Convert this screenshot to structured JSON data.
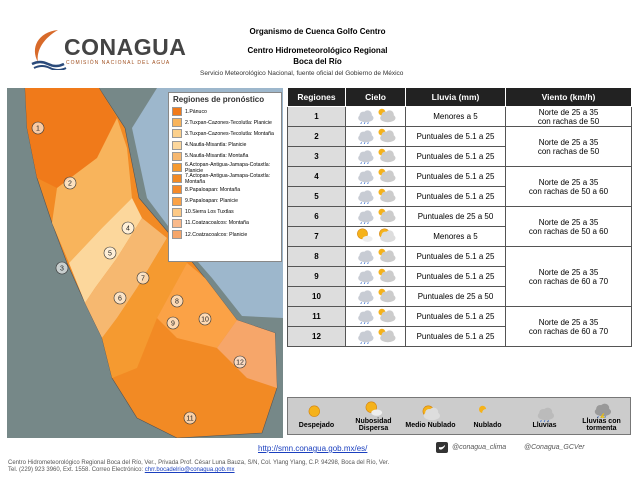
{
  "header": {
    "logo": "CONAGUA",
    "logo_sub": "COMISIÓN NACIONAL DEL AGUA",
    "title": "Organismo de Cuenca Golfo Centro",
    "subtitle": "Centro Hidrometeorológico Regional",
    "place": "Boca del Río",
    "service": "Servicio Meteorológico Nacional, fuente oficial del Gobierno de México"
  },
  "map": {
    "legend_title": "Regiones de pronóstico",
    "legend_items": [
      "1.Pánuco",
      "2.Tuxpan-Cazones-Tecolutla: Planicie",
      "3.Tuxpan-Cazones-Tecolutla: Montaña",
      "4.Nautla-Misantla: Planicie",
      "5.Nautla-Misantla: Montaña",
      "6.Actopan-Antigua-Jamapa-Cotaxtla: Planicie",
      "7.Actopan-Antigua-Jamapa-Cotaxtla: Montaña",
      "8.Papaloapan: Montaña",
      "9.Papaloapan: Planicie",
      "10.Sierra Los Tuxtlas",
      "11.Coatzacoalcos: Montaña",
      "12.Coatzacoalcos: Planicie"
    ],
    "legend_colors": [
      "#f07a1a",
      "#f8b45c",
      "#fbd08c",
      "#fcd79c",
      "#f6b870",
      "#f59a30",
      "#f28a24",
      "#f58a2a",
      "#fba246",
      "#fcc986",
      "#f9b98a",
      "#f6a66a"
    ],
    "labels": [
      "1",
      "2",
      "3",
      "4",
      "5",
      "6",
      "7",
      "8",
      "9",
      "10",
      "11",
      "12"
    ]
  },
  "table": {
    "headers": [
      "Regiones",
      "Cielo",
      "Lluvia (mm)",
      "Viento (km/h)"
    ],
    "regions": [
      "1",
      "2",
      "3",
      "4",
      "5",
      "6",
      "7",
      "8",
      "9",
      "10",
      "11",
      "12"
    ],
    "lluvia": [
      "Menores a 5",
      "Puntuales de 5.1 a 25",
      "Puntuales de 5.1 a 25",
      "Puntuales de 5.1 a 25",
      "Puntuales de 5.1 a 25",
      "Puntuales de 25 a 50",
      "Menores a 5",
      "Puntuales de 5.1 a 25",
      "Puntuales de 5.1 a 25",
      "Puntuales de 25 a 50",
      "Puntuales de 5.1 a 25",
      "Puntuales de 5.1 a 25"
    ],
    "viento": [
      "Norte de 25 a 35\ncon rachas de  50",
      "Norte de 25 a 35\ncon rachas de  50",
      "Norte de 25 a 35\ncon rachas de  50 a 60",
      "Norte de 25 a 35\ncon rachas de  50 a 60",
      "Norte de 25 a 35\ncon rachas de  60 a 70",
      "Norte de 25 a 35\ncon rachas de  60 a 70"
    ]
  },
  "icon_legend": [
    "Despejado",
    "Nubosidad Dispersa",
    "Medio Nublado",
    "Nublado",
    "Lluvias",
    "Lluvias con tormenta"
  ],
  "footer": {
    "url": "http://smn.conagua.gob.mx/es/",
    "twitter1": "@conagua_clima",
    "twitter2": "@Conagua_GCVer",
    "address": "Centro Hidrometeorológico Regional Boca del Río, Ver., Privada Prof. César Luna Bauza, S/N, Col. Ylang Ylang, C.P. 94298, Boca del Río, Ver.",
    "contact": "Tel. (229) 923 3960, Ext. 1558. Correo Electrónico:",
    "email": "chrr.bocadelrio@conagua.gob.mx"
  }
}
